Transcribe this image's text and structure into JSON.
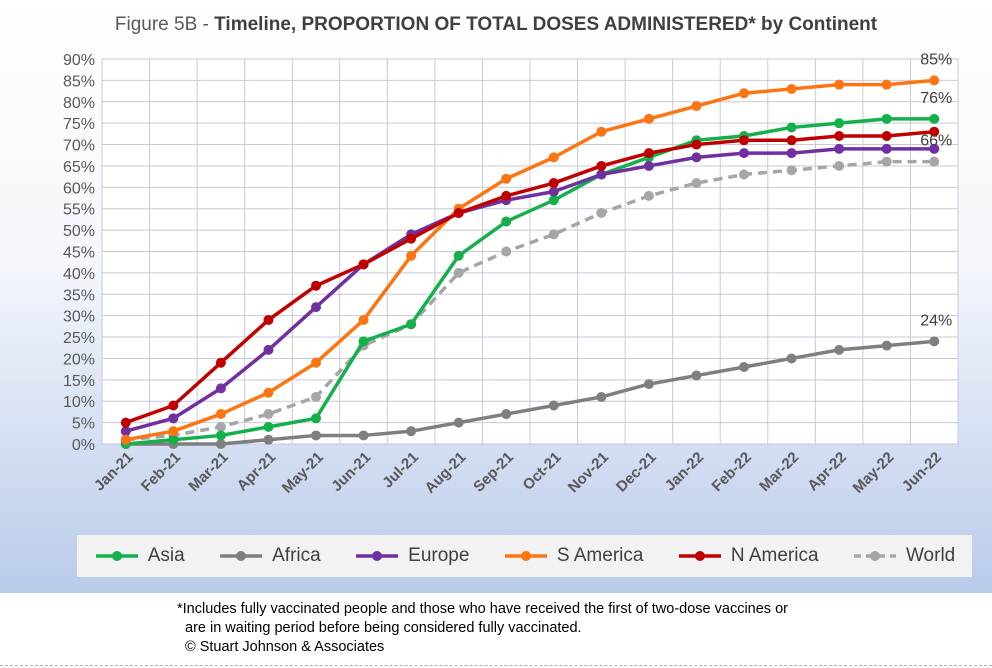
{
  "title_prefix": "Figure 5B - ",
  "title_main": "Timeline, PROPORTION OF TOTAL DOSES ADMINISTERED* by Continent",
  "footnote": {
    "line1": "*Includes fully vaccinated people and those who have received the first of two-dose vaccines or",
    "line2": "are in waiting period before being considered fully vaccinated.",
    "line3": "© Stuart Johnson & Associates"
  },
  "colors": {
    "asia": "#14b04c",
    "africa": "#7f7f7f",
    "europe": "#7030a0",
    "s_america": "#fc7512",
    "n_america": "#c00000",
    "world": "#a6a6a6",
    "grid": "#c9c9d9",
    "axis_text": "#595959"
  },
  "chart_data": {
    "type": "line",
    "title": "Figure 5B - Timeline, PROPORTION OF TOTAL DOSES ADMINISTERED* by Continent",
    "categories": [
      "Jan-21",
      "Feb-21",
      "Mar-21",
      "Apr-21",
      "May-21",
      "Jun-21",
      "Jul-21",
      "Aug-21",
      "Sep-21",
      "Oct-21",
      "Nov-21",
      "Dec-21",
      "Jan-22",
      "Feb-22",
      "Mar-22",
      "Apr-22",
      "May-22",
      "Jun-22"
    ],
    "ylim": [
      0,
      90
    ],
    "yticks": [
      0,
      5,
      10,
      15,
      20,
      25,
      30,
      35,
      40,
      45,
      50,
      55,
      60,
      65,
      70,
      75,
      80,
      85,
      90
    ],
    "ytick_suffix": "%",
    "grid": true,
    "legend_position": "bottom",
    "series": [
      {
        "name": "Asia",
        "key": "asia",
        "dashed": false,
        "values": [
          0,
          1,
          2,
          4,
          6,
          24,
          28,
          44,
          52,
          57,
          63,
          67,
          71,
          72,
          74,
          75,
          76,
          76
        ]
      },
      {
        "name": "Africa",
        "key": "africa",
        "dashed": false,
        "values": [
          0,
          0,
          0,
          1,
          2,
          2,
          3,
          5,
          7,
          9,
          11,
          14,
          16,
          18,
          20,
          22,
          23,
          24
        ]
      },
      {
        "name": "Europe",
        "key": "europe",
        "dashed": false,
        "values": [
          3,
          6,
          13,
          22,
          32,
          42,
          49,
          54,
          57,
          59,
          63,
          65,
          67,
          68,
          68,
          69,
          69,
          69
        ]
      },
      {
        "name": "S America",
        "key": "s_america",
        "dashed": false,
        "values": [
          1,
          3,
          7,
          12,
          19,
          29,
          44,
          55,
          62,
          67,
          73,
          76,
          79,
          82,
          83,
          84,
          84,
          85
        ]
      },
      {
        "name": "N America",
        "key": "n_america",
        "dashed": false,
        "values": [
          5,
          9,
          19,
          29,
          37,
          42,
          48,
          54,
          58,
          61,
          65,
          68,
          70,
          71,
          71,
          72,
          72,
          73
        ]
      },
      {
        "name": "World",
        "key": "world",
        "dashed": true,
        "values": [
          1,
          2,
          4,
          7,
          11,
          23,
          28,
          40,
          45,
          49,
          54,
          58,
          61,
          63,
          64,
          65,
          66,
          66
        ]
      }
    ],
    "annotations": [
      {
        "text": "85%",
        "x": "Jun-22",
        "y": 85
      },
      {
        "text": "76%",
        "x": "Jun-22",
        "y": 76
      },
      {
        "text": "66%",
        "x": "Jun-22",
        "y": 66
      },
      {
        "text": "24%",
        "x": "Jun-22",
        "y": 24
      }
    ]
  }
}
